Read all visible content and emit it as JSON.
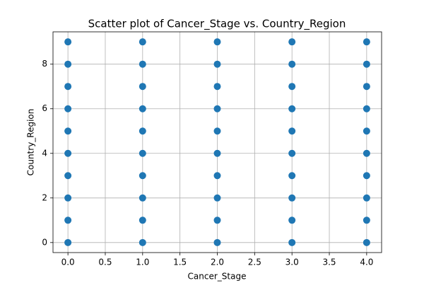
{
  "chart_data": {
    "type": "scatter",
    "title": "Scatter plot of Cancer_Stage vs. Country_Region",
    "x_label": "Cancer_Stage",
    "y_label": "Country_Region",
    "x": [
      0,
      0,
      0,
      0,
      0,
      0,
      0,
      0,
      0,
      0,
      1,
      1,
      1,
      1,
      1,
      1,
      1,
      1,
      1,
      1,
      2,
      2,
      2,
      2,
      2,
      2,
      2,
      2,
      2,
      2,
      3,
      3,
      3,
      3,
      3,
      3,
      3,
      3,
      3,
      3,
      4,
      4,
      4,
      4,
      4,
      4,
      4,
      4,
      4,
      4
    ],
    "y": [
      0,
      1,
      2,
      3,
      4,
      5,
      6,
      7,
      8,
      9,
      0,
      1,
      2,
      3,
      4,
      5,
      6,
      7,
      8,
      9,
      0,
      1,
      2,
      3,
      4,
      5,
      6,
      7,
      8,
      9,
      0,
      1,
      2,
      3,
      4,
      5,
      6,
      7,
      8,
      9,
      0,
      1,
      2,
      3,
      4,
      5,
      6,
      7,
      8,
      9
    ],
    "color": "#1f77b4",
    "xlim": [
      -0.2,
      4.2
    ],
    "xticks": [
      {
        "value": 0,
        "label": "0.0"
      },
      0.5,
      {
        "value": 1,
        "label": "1.0"
      },
      1.5,
      {
        "value": 2,
        "label": "2.0"
      },
      2.5,
      {
        "value": 3,
        "label": "3.0"
      },
      3.5,
      {
        "value": 4,
        "label": "4.0"
      }
    ],
    "ylim": [
      -0.45,
      9.45
    ],
    "yticks": [
      0,
      2,
      4,
      6,
      8
    ],
    "grid": true
  }
}
